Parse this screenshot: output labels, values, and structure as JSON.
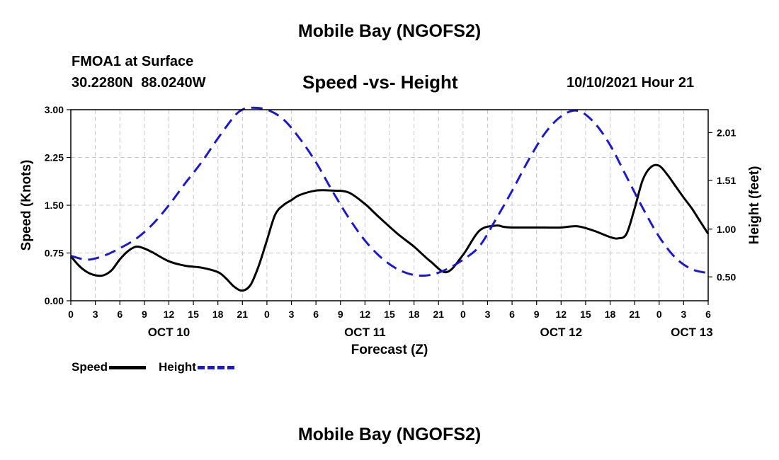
{
  "header": {
    "title_top": "Mobile Bay (NGOFS2)",
    "station": "FMOA1 at Surface",
    "coords": "30.2280N 88.0240W",
    "subtitle": "Speed -vs- Height",
    "datetime": "10/10/2021 Hour 21"
  },
  "footer": {
    "title_bottom": "Mobile Bay (NGOFS2)"
  },
  "legend": {
    "speed_label": "Speed",
    "height_label": "Height"
  },
  "colors": {
    "speed": "#000000",
    "height": "#1a1acc",
    "grid": "#c8c8c8"
  },
  "chart_data": {
    "type": "line",
    "title": "Speed -vs- Height",
    "xlabel": "Forecast (Z)",
    "ylabel": "Speed (Knots)",
    "y2label": "Height (feet)",
    "xlim": [
      0,
      78
    ],
    "ylim": [
      0,
      3.0
    ],
    "y2lim": [
      0.25,
      2.25
    ],
    "x_ticks": [
      0,
      3,
      6,
      9,
      12,
      15,
      18,
      21,
      24,
      27,
      30,
      33,
      36,
      39,
      42,
      45,
      48,
      51,
      54,
      57,
      60,
      63,
      66,
      69,
      72,
      75,
      78
    ],
    "x_tick_labels": [
      "0",
      "3",
      "6",
      "9",
      "12",
      "15",
      "18",
      "21",
      "0",
      "3",
      "6",
      "9",
      "12",
      "15",
      "18",
      "21",
      "0",
      "3",
      "6",
      "9",
      "12",
      "15",
      "18",
      "21",
      "0",
      "3",
      "6"
    ],
    "y_ticks": [
      "0.00",
      "0.75",
      "1.50",
      "2.25",
      "3.00"
    ],
    "y_tick_values": [
      0,
      0.75,
      1.5,
      2.25,
      3.0
    ],
    "y2_ticks": [
      "0.50",
      "1.00",
      "1.51",
      "2.01"
    ],
    "y2_tick_values": [
      0.5,
      1.0,
      1.51,
      2.01
    ],
    "day_labels": [
      {
        "x": 12,
        "label": "OCT 10"
      },
      {
        "x": 36,
        "label": "OCT 11"
      },
      {
        "x": 60,
        "label": "OCT 12"
      },
      {
        "x": 76,
        "label": "OCT 13"
      }
    ],
    "grid": true,
    "legend_position": "bottom-left",
    "series": [
      {
        "name": "Speed",
        "axis": "left",
        "style": "solid",
        "x": [
          0,
          1,
          2,
          3,
          4,
          5,
          6,
          7,
          8,
          9,
          10,
          12,
          14,
          16,
          18,
          19,
          20,
          21,
          22,
          23,
          24,
          25,
          26,
          27,
          28,
          30,
          32,
          34,
          36,
          37,
          38,
          40,
          42,
          44,
          46,
          48,
          50,
          52,
          53,
          54,
          55,
          56,
          58,
          60,
          62,
          64,
          66,
          67,
          68,
          69,
          70,
          71,
          72,
          73,
          74,
          75,
          76,
          77,
          78
        ],
        "values": [
          0.7,
          0.55,
          0.45,
          0.4,
          0.4,
          0.48,
          0.65,
          0.78,
          0.85,
          0.82,
          0.76,
          0.62,
          0.55,
          0.52,
          0.45,
          0.35,
          0.22,
          0.16,
          0.25,
          0.55,
          0.95,
          1.35,
          1.5,
          1.58,
          1.66,
          1.73,
          1.73,
          1.7,
          1.52,
          1.4,
          1.28,
          1.05,
          0.85,
          0.62,
          0.45,
          0.72,
          1.1,
          1.18,
          1.16,
          1.15,
          1.15,
          1.15,
          1.15,
          1.15,
          1.17,
          1.1,
          1.0,
          0.98,
          1.05,
          1.45,
          1.9,
          2.1,
          2.12,
          1.98,
          1.8,
          1.62,
          1.45,
          1.25,
          1.05
        ]
      },
      {
        "name": "Height",
        "axis": "right",
        "style": "dashed",
        "x": [
          0,
          2,
          4,
          6,
          8,
          10,
          12,
          14,
          16,
          18,
          20,
          21,
          22,
          24,
          26,
          28,
          30,
          32,
          34,
          36,
          38,
          40,
          42,
          44,
          46,
          48,
          50,
          52,
          54,
          56,
          58,
          60,
          62,
          64,
          66,
          68,
          70,
          72,
          74,
          76,
          78
        ],
        "values": [
          0.72,
          0.68,
          0.72,
          0.8,
          0.9,
          1.05,
          1.25,
          1.48,
          1.7,
          1.95,
          2.18,
          2.25,
          2.27,
          2.25,
          2.15,
          1.95,
          1.7,
          1.4,
          1.12,
          0.88,
          0.7,
          0.58,
          0.52,
          0.52,
          0.58,
          0.68,
          0.82,
          1.1,
          1.4,
          1.72,
          2.0,
          2.18,
          2.24,
          2.12,
          1.88,
          1.55,
          1.22,
          0.92,
          0.7,
          0.58,
          0.54
        ]
      }
    ]
  },
  "chart_series_note": ""
}
